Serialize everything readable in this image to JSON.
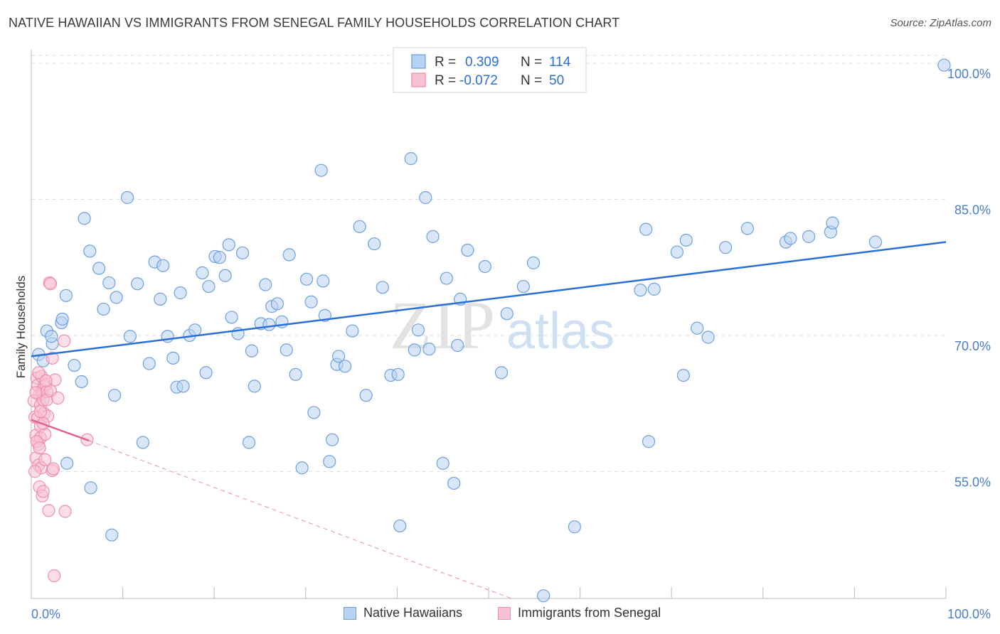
{
  "title": "NATIVE HAWAIIAN VS IMMIGRANTS FROM SENEGAL FAMILY HOUSEHOLDS CORRELATION CHART",
  "source": "Source: ZipAtlas.com",
  "watermark": {
    "zip": "ZIP",
    "atlas": "atlas"
  },
  "colors": {
    "blue_fill": "#b8d2f2",
    "blue_stroke": "#6fa0de",
    "blue_line": "#2a6fd1",
    "pink_fill": "#f7c3d3",
    "pink_stroke": "#ef8fae",
    "pink_line": "#e5608a",
    "axis_text": "#4a7cc9",
    "grid": "#dddddd"
  },
  "stats_legend": [
    {
      "r_label": "R =",
      "r_value": "0.309",
      "n_label": "N =",
      "n_value": "114"
    },
    {
      "r_label": "R =",
      "r_value": "-0.072",
      "n_label": "N =",
      "n_value": "50"
    }
  ],
  "bottom_legend": [
    "Native Hawaiians",
    "Immigrants from Senegal"
  ],
  "chart_data": {
    "type": "scatter",
    "ylabel": "Family Households",
    "x_tick_labels": [
      "0.0%",
      "100.0%"
    ],
    "y_tick_labels": [
      "55.0%",
      "70.0%",
      "85.0%",
      "100.0%"
    ],
    "y_ticks": [
      55,
      70,
      85,
      100
    ],
    "xlim": [
      0,
      100
    ],
    "ylim": [
      41.0,
      101.5
    ],
    "grid": true,
    "series": [
      {
        "name": "Native Hawaiians",
        "trend": {
          "x0": 0,
          "y0": 67.7,
          "x1": 100,
          "y1": 80.3
        },
        "points": [
          [
            0.8,
            67.9
          ],
          [
            1.3,
            67.2
          ],
          [
            1.7,
            70.5
          ],
          [
            2.3,
            69.1
          ],
          [
            3.3,
            71.4
          ],
          [
            3.4,
            71.8
          ],
          [
            3.8,
            74.4
          ],
          [
            4.7,
            66.7
          ],
          [
            5.5,
            64.9
          ],
          [
            5.8,
            82.9
          ],
          [
            6.4,
            79.3
          ],
          [
            7.4,
            77.4
          ],
          [
            7.9,
            72.9
          ],
          [
            8.5,
            75.8
          ],
          [
            9.1,
            63.4
          ],
          [
            9.3,
            74.2
          ],
          [
            10.5,
            85.2
          ],
          [
            10.8,
            69.9
          ],
          [
            11.6,
            75.7
          ],
          [
            12.2,
            58.2
          ],
          [
            12.9,
            66.9
          ],
          [
            13.5,
            78.1
          ],
          [
            14.1,
            74.0
          ],
          [
            14.4,
            77.7
          ],
          [
            14.9,
            69.9
          ],
          [
            15.5,
            67.5
          ],
          [
            15.9,
            64.3
          ],
          [
            16.3,
            74.7
          ],
          [
            16.6,
            64.4
          ],
          [
            17.3,
            70.0
          ],
          [
            17.9,
            70.6
          ],
          [
            18.7,
            76.9
          ],
          [
            19.1,
            65.9
          ],
          [
            19.4,
            75.4
          ],
          [
            20.1,
            78.7
          ],
          [
            20.6,
            78.6
          ],
          [
            21.2,
            76.6
          ],
          [
            21.6,
            80.0
          ],
          [
            21.9,
            72.0
          ],
          [
            22.6,
            70.2
          ],
          [
            23.1,
            79.1
          ],
          [
            23.8,
            58.2
          ],
          [
            24.1,
            68.3
          ],
          [
            24.4,
            64.4
          ],
          [
            25.1,
            71.3
          ],
          [
            25.6,
            75.6
          ],
          [
            26.0,
            71.2
          ],
          [
            26.3,
            73.2
          ],
          [
            26.9,
            73.5
          ],
          [
            27.4,
            71.5
          ],
          [
            27.9,
            68.4
          ],
          [
            28.2,
            78.9
          ],
          [
            28.9,
            65.7
          ],
          [
            29.6,
            55.4
          ],
          [
            30.1,
            76.2
          ],
          [
            30.6,
            73.7
          ],
          [
            30.9,
            61.5
          ],
          [
            31.7,
            88.2
          ],
          [
            31.9,
            76.0
          ],
          [
            32.1,
            72.2
          ],
          [
            32.6,
            56.1
          ],
          [
            32.9,
            58.5
          ],
          [
            33.4,
            66.8
          ],
          [
            33.6,
            67.7
          ],
          [
            34.3,
            66.6
          ],
          [
            35.1,
            70.5
          ],
          [
            35.9,
            82.0
          ],
          [
            36.6,
            63.4
          ],
          [
            37.5,
            80.1
          ],
          [
            38.4,
            75.3
          ],
          [
            39.3,
            65.6
          ],
          [
            40.1,
            65.7
          ],
          [
            40.3,
            49.0
          ],
          [
            41.5,
            89.5
          ],
          [
            41.9,
            68.4
          ],
          [
            42.3,
            70.6
          ],
          [
            43.1,
            85.2
          ],
          [
            43.5,
            68.5
          ],
          [
            43.9,
            80.9
          ],
          [
            45.0,
            55.9
          ],
          [
            45.4,
            76.3
          ],
          [
            46.2,
            53.7
          ],
          [
            46.6,
            68.9
          ],
          [
            46.9,
            74.0
          ],
          [
            47.7,
            79.4
          ],
          [
            49.6,
            77.6
          ],
          [
            51.4,
            65.9
          ],
          [
            52.0,
            72.4
          ],
          [
            53.8,
            75.4
          ],
          [
            54.9,
            78.0
          ],
          [
            56.0,
            41.3
          ],
          [
            59.4,
            48.9
          ],
          [
            66.6,
            75.0
          ],
          [
            67.2,
            81.7
          ],
          [
            67.5,
            58.3
          ],
          [
            68.1,
            75.1
          ],
          [
            70.6,
            79.2
          ],
          [
            71.3,
            65.6
          ],
          [
            71.6,
            80.5
          ],
          [
            72.8,
            70.8
          ],
          [
            74.0,
            69.8
          ],
          [
            75.9,
            79.7
          ],
          [
            78.3,
            81.8
          ],
          [
            82.5,
            80.3
          ],
          [
            83.0,
            80.7
          ],
          [
            85.0,
            80.9
          ],
          [
            87.4,
            81.4
          ],
          [
            87.6,
            82.4
          ],
          [
            92.3,
            80.3
          ],
          [
            99.8,
            99.8
          ],
          [
            3.9,
            55.9
          ],
          [
            6.5,
            53.2
          ],
          [
            2.2,
            69.9
          ],
          [
            8.8,
            48.0
          ]
        ]
      },
      {
        "name": "Immigrants from Senegal",
        "trend": {
          "x0": 0,
          "y0": 60.7,
          "x1": 6.3,
          "y1": 58.4
        },
        "trend_dashed": {
          "x0": 6.3,
          "y0": 58.4,
          "x1": 52.5,
          "y1": 41.0
        },
        "points": [
          [
            0.3,
            62.8
          ],
          [
            0.4,
            61.0
          ],
          [
            0.5,
            59.0
          ],
          [
            0.5,
            56.5
          ],
          [
            0.6,
            65.3
          ],
          [
            0.7,
            64.5
          ],
          [
            0.7,
            60.9
          ],
          [
            0.8,
            58.0
          ],
          [
            0.8,
            55.7
          ],
          [
            0.9,
            63.5
          ],
          [
            0.9,
            53.3
          ],
          [
            1.0,
            62.3
          ],
          [
            1.0,
            60.0
          ],
          [
            1.0,
            58.7
          ],
          [
            1.1,
            65.5
          ],
          [
            1.1,
            55.4
          ],
          [
            1.2,
            64.0
          ],
          [
            1.2,
            63.6
          ],
          [
            1.2,
            52.3
          ],
          [
            1.3,
            62.9
          ],
          [
            1.3,
            52.8
          ],
          [
            1.4,
            64.4
          ],
          [
            1.4,
            61.4
          ],
          [
            1.5,
            59.1
          ],
          [
            1.5,
            56.3
          ],
          [
            1.6,
            64.6
          ],
          [
            1.7,
            63.8
          ],
          [
            1.7,
            62.9
          ],
          [
            1.8,
            61.1
          ],
          [
            1.9,
            50.7
          ],
          [
            2.0,
            75.8
          ],
          [
            2.1,
            75.7
          ],
          [
            2.1,
            63.9
          ],
          [
            2.3,
            67.5
          ],
          [
            2.3,
            55.1
          ],
          [
            2.4,
            55.3
          ],
          [
            2.5,
            43.5
          ],
          [
            2.6,
            65.1
          ],
          [
            2.9,
            63.1
          ],
          [
            3.6,
            69.4
          ],
          [
            3.7,
            50.6
          ],
          [
            6.1,
            58.5
          ],
          [
            0.4,
            55.0
          ],
          [
            0.6,
            58.3
          ],
          [
            0.8,
            65.9
          ],
          [
            1.0,
            61.6
          ],
          [
            1.3,
            60.3
          ],
          [
            1.6,
            65.0
          ],
          [
            0.5,
            63.7
          ],
          [
            0.9,
            57.6
          ]
        ]
      }
    ]
  }
}
